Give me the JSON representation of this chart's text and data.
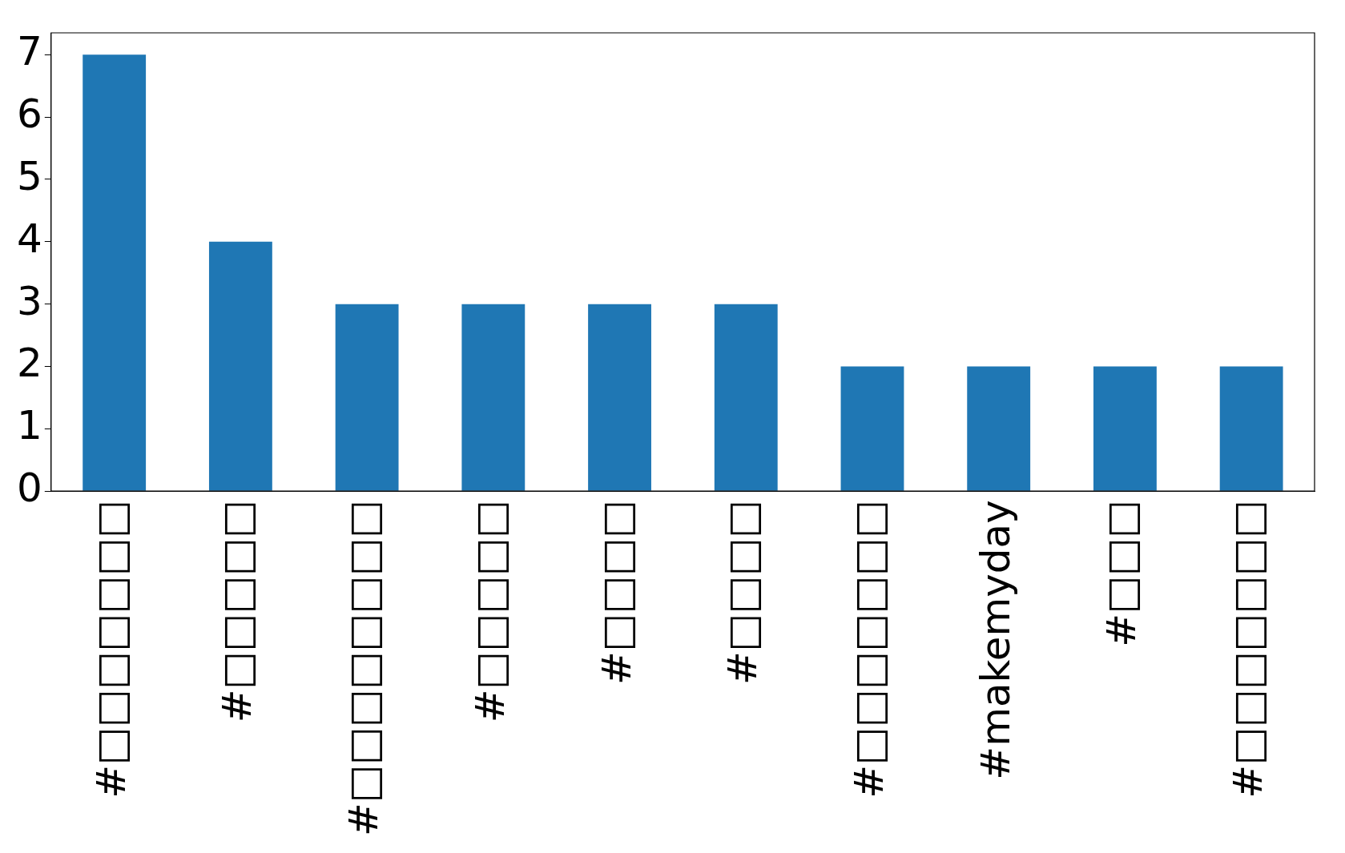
{
  "chart_data": {
    "type": "bar",
    "categories": [
      "#□□□□□□□",
      "#□□□□□",
      "#□□□□□□□□",
      "#□□□□□",
      "#□□□□",
      "#□□□□",
      "#□□□□□□□",
      "#makemyday",
      "#□□□",
      "#□□□□□□□"
    ],
    "values": [
      7,
      4,
      3,
      3,
      3,
      3,
      2,
      2,
      2,
      2
    ],
    "color": "#1f77b4",
    "ylim": [
      0,
      7.35
    ],
    "yticks": [
      0,
      1,
      2,
      3,
      4,
      5,
      6,
      7
    ],
    "grid": false,
    "legend": false
  }
}
